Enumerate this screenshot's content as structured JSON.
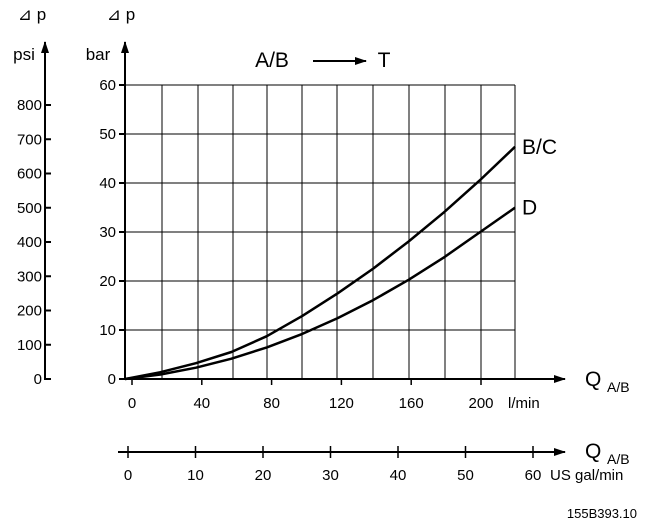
{
  "chart_data": {
    "type": "line",
    "title": "A/B → T",
    "title_parts": {
      "from": "A/B",
      "to": "T"
    },
    "delta_p_symbol": "⊿ p",
    "psi_unit": "psi",
    "bar_unit": "bar",
    "x_main_label": "Q",
    "x_main_subscript": "A/B",
    "x_main_unit": "l/min",
    "x_main_ticks": [
      0,
      40,
      80,
      120,
      160,
      200
    ],
    "x_main_range": [
      0,
      220
    ],
    "x_gal_label": "Q",
    "x_gal_subscript": "A/B",
    "x_gal_unit": "US gal/min",
    "x_gal_ticks": [
      0,
      10,
      20,
      30,
      40,
      50,
      60
    ],
    "x_gal_range": [
      0,
      58
    ],
    "y_bar_ticks": [
      0,
      10,
      20,
      30,
      40,
      50,
      60
    ],
    "y_bar_range": [
      0,
      60
    ],
    "y_psi_ticks": [
      0,
      100,
      200,
      300,
      400,
      500,
      600,
      700,
      800
    ],
    "y_psi_range": [
      0,
      870
    ],
    "grid": true,
    "series": [
      {
        "name": "B/C",
        "x": [
          0,
          20,
          40,
          60,
          80,
          100,
          120,
          140,
          160,
          180,
          200,
          220
        ],
        "y": [
          0,
          1.5,
          3.5,
          6,
          9.5,
          14,
          19,
          24.5,
          30.5,
          37,
          44,
          51.5
        ]
      },
      {
        "name": "D",
        "x": [
          0,
          20,
          40,
          60,
          80,
          100,
          120,
          140,
          160,
          180,
          200,
          220
        ],
        "y": [
          0,
          1,
          2.5,
          4.5,
          7,
          10,
          13.5,
          17.5,
          22,
          27,
          32.5,
          38
        ]
      }
    ],
    "reference_code": "155B393.10"
  }
}
